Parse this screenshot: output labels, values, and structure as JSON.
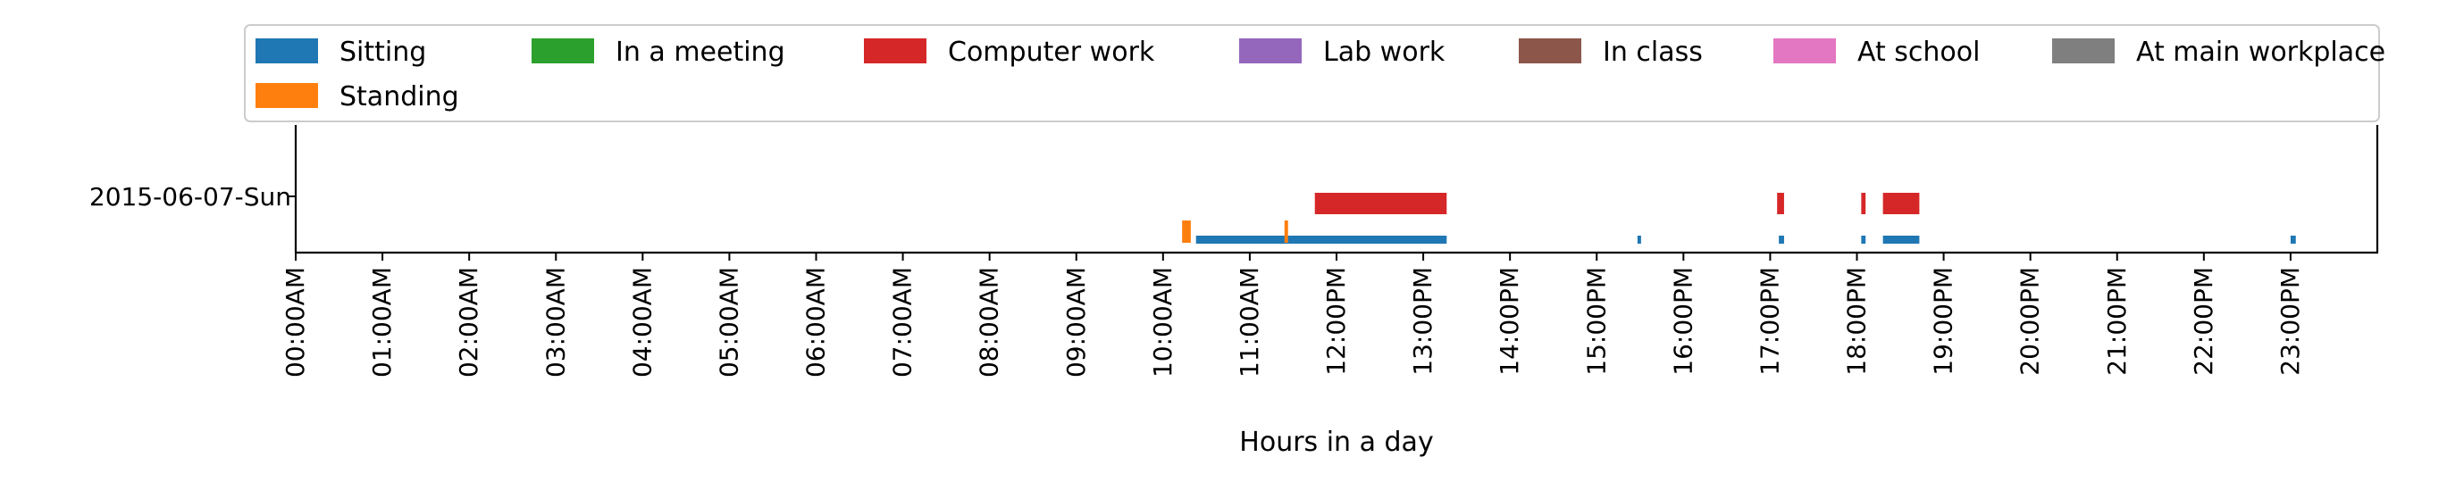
{
  "chart_data": {
    "type": "timeline",
    "xlabel": "Hours in a day",
    "ylabel": "",
    "xlim": [
      0,
      24
    ],
    "date_label": "2015-06-07-Sun",
    "grid": false,
    "legend_placement": "top",
    "legend": [
      {
        "name": "Sitting",
        "color": "#1f77b4"
      },
      {
        "name": "In a meeting",
        "color": "#2ca02c"
      },
      {
        "name": "Computer work",
        "color": "#d62728"
      },
      {
        "name": "Lab work",
        "color": "#9467bd"
      },
      {
        "name": "In class",
        "color": "#8c564b"
      },
      {
        "name": "At school",
        "color": "#e377c2"
      },
      {
        "name": "At main workplace",
        "color": "#7f7f7f"
      },
      {
        "name": "Standing",
        "color": "#ff7f0e"
      }
    ],
    "x_tick_labels": [
      "00:00AM",
      "01:00AM",
      "02:00AM",
      "03:00AM",
      "04:00AM",
      "05:00AM",
      "06:00AM",
      "07:00AM",
      "08:00AM",
      "09:00AM",
      "10:00AM",
      "11:00AM",
      "12:00PM",
      "13:00PM",
      "14:00PM",
      "15:00PM",
      "16:00PM",
      "17:00PM",
      "18:00PM",
      "19:00PM",
      "20:00PM",
      "21:00PM",
      "22:00PM",
      "23:00PM"
    ],
    "series": [
      {
        "name": "Sitting",
        "color": "#1f77b4",
        "lane": 0,
        "intervals": [
          [
            10.38,
            13.27
          ],
          [
            15.47,
            15.5
          ],
          [
            17.1,
            17.16
          ],
          [
            18.05,
            18.1
          ],
          [
            18.3,
            18.72
          ],
          [
            23.0,
            23.06
          ]
        ]
      },
      {
        "name": "Standing",
        "color": "#ff7f0e",
        "lane": 0,
        "intervals": [
          [
            10.22,
            10.32
          ],
          [
            11.4,
            11.43
          ]
        ]
      },
      {
        "name": "Computer work",
        "color": "#d62728",
        "lane": 1,
        "intervals": [
          [
            11.75,
            13.27
          ],
          [
            17.08,
            17.16
          ],
          [
            18.05,
            18.1
          ],
          [
            18.3,
            18.72
          ]
        ]
      }
    ]
  }
}
